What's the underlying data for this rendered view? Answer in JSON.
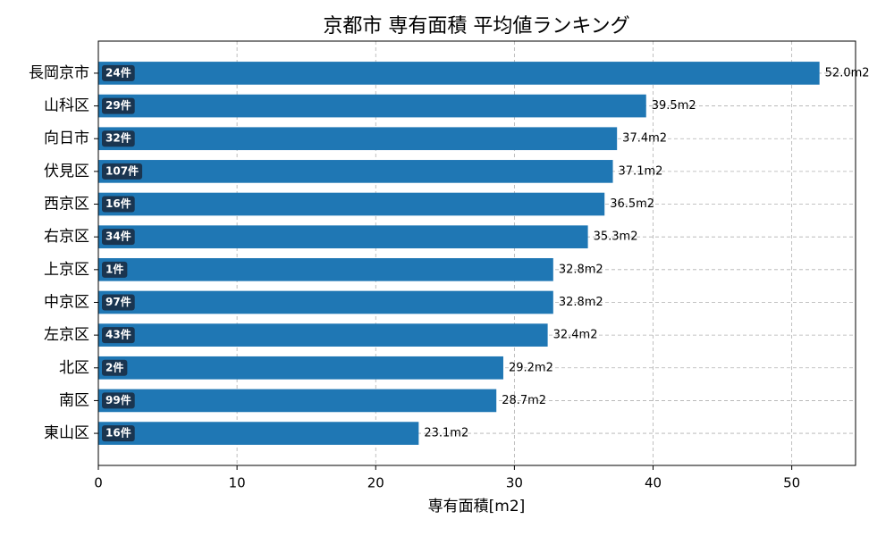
{
  "chart_data": {
    "type": "barh",
    "title": "京都市 専有面積 平均値ランキング",
    "x_label": "専有面積[m2]",
    "categories": [
      "長岡京市",
      "山科区",
      "向日市",
      "伏見区",
      "西京区",
      "右京区",
      "上京区",
      "中京区",
      "左京区",
      "北区",
      "南区",
      "東山区"
    ],
    "values": [
      52.0,
      39.5,
      37.4,
      37.1,
      36.5,
      35.3,
      32.8,
      32.8,
      32.4,
      29.2,
      28.7,
      23.1
    ],
    "value_labels": [
      "52.0m2",
      "39.5m2",
      "37.4m2",
      "37.1m2",
      "36.5m2",
      "35.3m2",
      "32.8m2",
      "32.8m2",
      "32.4m2",
      "29.2m2",
      "28.7m2",
      "23.1m2"
    ],
    "count_labels": [
      "24件",
      "29件",
      "32件",
      "107件",
      "16件",
      "34件",
      "1件",
      "97件",
      "43件",
      "2件",
      "99件",
      "16件"
    ],
    "color": "#1f77b4",
    "xlim": [
      0,
      54.6
    ],
    "xticks": [
      0,
      10,
      20,
      30,
      40,
      50
    ],
    "grid": true
  }
}
